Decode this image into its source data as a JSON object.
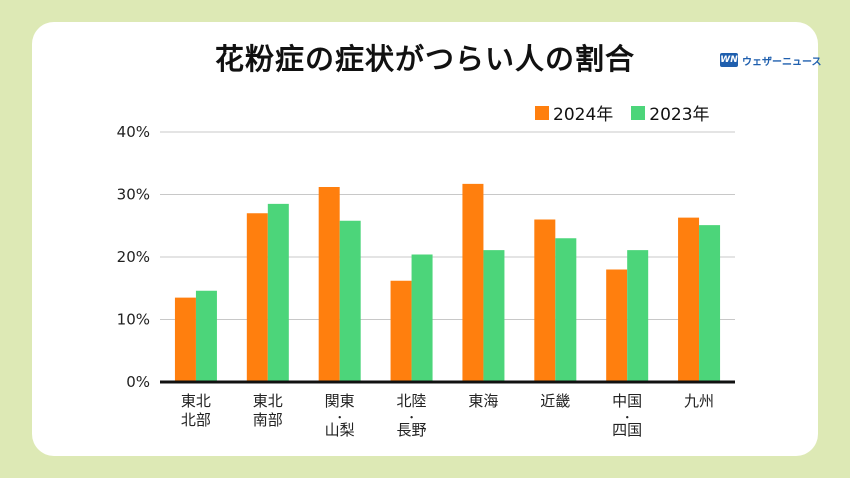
{
  "title": "花粉症の症状がつらい人の割合",
  "brand": {
    "logo": "WN",
    "name": "ウェザーニュース"
  },
  "colors": {
    "series2024": "#ff7f0e",
    "series2023": "#4cd57a",
    "grid": "#c8c8c8",
    "axis": "#111111"
  },
  "chart_data": {
    "type": "bar",
    "title": "花粉症の症状がつらい人の割合",
    "xlabel": "",
    "ylabel": "",
    "ylim": [
      0,
      40
    ],
    "yticks": [
      "0%",
      "10%",
      "20%",
      "30%",
      "40%"
    ],
    "ytick_values": [
      0,
      10,
      20,
      30,
      40
    ],
    "grid": true,
    "legend_position": "top-right",
    "categories": [
      [
        "東北",
        "北部"
      ],
      [
        "東北",
        "南部"
      ],
      [
        "関東",
        "・",
        "山梨"
      ],
      [
        "北陸",
        "・",
        "長野"
      ],
      [
        "東海"
      ],
      [
        "近畿"
      ],
      [
        "中国",
        "・",
        "四国"
      ],
      [
        "九州"
      ]
    ],
    "series": [
      {
        "name": "2024年",
        "values": [
          13.5,
          27.0,
          31.2,
          16.2,
          31.7,
          26.0,
          18.0,
          26.3
        ]
      },
      {
        "name": "2023年",
        "values": [
          14.6,
          28.5,
          25.8,
          20.4,
          21.1,
          23.0,
          21.1,
          25.1
        ]
      }
    ]
  }
}
